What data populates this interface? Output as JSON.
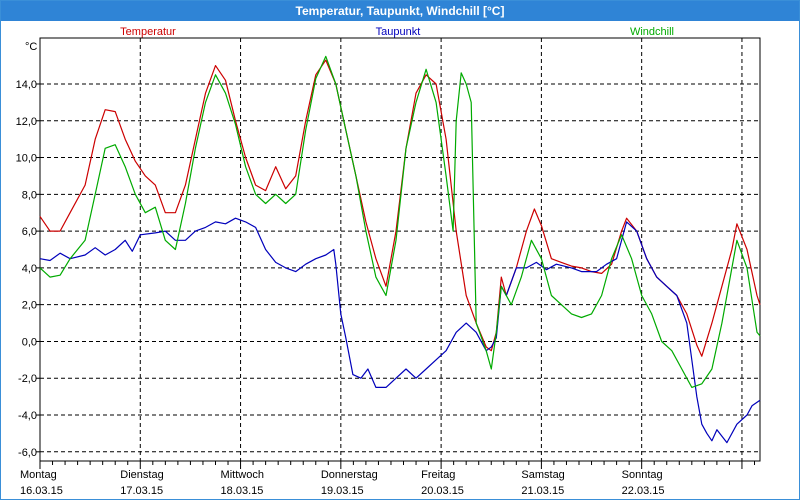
{
  "window": {
    "title": "Temperatur, Taupunkt, Windchill [°C]"
  },
  "chart_data": {
    "type": "line",
    "title": "Temperatur, Taupunkt, Windchill [°C]",
    "ylabel": "°C",
    "ylim": [
      -6.5,
      16.5
    ],
    "yticks": [
      14.0,
      12.0,
      10.0,
      8.0,
      6.0,
      4.0,
      2.0,
      0.0,
      -2.0,
      -4.0,
      -6.0
    ],
    "ytick_labels": [
      "14,0",
      "12,0",
      "10,0",
      "8,0",
      "6,0",
      "4,0",
      "2,0",
      "0,0",
      "-2,0",
      "-4,0",
      "-6,0"
    ],
    "xlim": [
      0,
      7.18
    ],
    "grid": true,
    "legend_position": "top",
    "day_labels": [
      {
        "day": "Montag",
        "date": "16.03.15"
      },
      {
        "day": "Dienstag",
        "date": "17.03.15"
      },
      {
        "day": "Mittwoch",
        "date": "18.03.15"
      },
      {
        "day": "Donnerstag",
        "date": "19.03.15"
      },
      {
        "day": "Freitag",
        "date": "20.03.15"
      },
      {
        "day": "Samstag",
        "date": "21.03.15"
      },
      {
        "day": "Sonntag",
        "date": "22.03.15"
      }
    ],
    "series": [
      {
        "name": "Temperatur",
        "color": "#cc0000",
        "points": [
          [
            0,
            6.8
          ],
          [
            0.1,
            6.0
          ],
          [
            0.2,
            6.0
          ],
          [
            0.3,
            7.0
          ],
          [
            0.45,
            8.5
          ],
          [
            0.55,
            11.0
          ],
          [
            0.65,
            12.6
          ],
          [
            0.75,
            12.5
          ],
          [
            0.85,
            11.0
          ],
          [
            0.95,
            9.8
          ],
          [
            1.05,
            9.0
          ],
          [
            1.15,
            8.5
          ],
          [
            1.25,
            7.0
          ],
          [
            1.35,
            7.0
          ],
          [
            1.45,
            8.5
          ],
          [
            1.55,
            11.0
          ],
          [
            1.65,
            13.5
          ],
          [
            1.75,
            15.0
          ],
          [
            1.85,
            14.2
          ],
          [
            1.95,
            12.0
          ],
          [
            2.05,
            10.0
          ],
          [
            2.15,
            8.5
          ],
          [
            2.25,
            8.2
          ],
          [
            2.35,
            9.5
          ],
          [
            2.45,
            8.3
          ],
          [
            2.55,
            9.0
          ],
          [
            2.65,
            12.0
          ],
          [
            2.75,
            14.5
          ],
          [
            2.85,
            15.3
          ],
          [
            2.95,
            14.0
          ],
          [
            3.05,
            11.5
          ],
          [
            3.15,
            9.0
          ],
          [
            3.25,
            6.5
          ],
          [
            3.35,
            4.5
          ],
          [
            3.45,
            3.0
          ],
          [
            3.55,
            6.0
          ],
          [
            3.65,
            10.5
          ],
          [
            3.75,
            13.5
          ],
          [
            3.85,
            14.5
          ],
          [
            3.95,
            14.0
          ],
          [
            4.05,
            11.0
          ],
          [
            4.15,
            6.0
          ],
          [
            4.25,
            2.5
          ],
          [
            4.35,
            1.0
          ],
          [
            4.45,
            -0.3
          ],
          [
            4.5,
            -0.5
          ],
          [
            4.55,
            0.5
          ],
          [
            4.6,
            3.5
          ],
          [
            4.65,
            2.5
          ],
          [
            4.75,
            4.0
          ],
          [
            4.85,
            6.0
          ],
          [
            4.93,
            7.2
          ],
          [
            5.0,
            6.3
          ],
          [
            5.1,
            4.5
          ],
          [
            5.2,
            4.3
          ],
          [
            5.3,
            4.1
          ],
          [
            5.4,
            4.0
          ],
          [
            5.5,
            3.8
          ],
          [
            5.6,
            3.7
          ],
          [
            5.7,
            4.2
          ],
          [
            5.8,
            6.0
          ],
          [
            5.85,
            6.7
          ],
          [
            5.95,
            6.0
          ],
          [
            6.05,
            4.5
          ],
          [
            6.15,
            3.5
          ],
          [
            6.25,
            3.0
          ],
          [
            6.35,
            2.5
          ],
          [
            6.45,
            1.5
          ],
          [
            6.55,
            -0.2
          ],
          [
            6.6,
            -0.8
          ],
          [
            6.7,
            1.0
          ],
          [
            6.8,
            3.0
          ],
          [
            6.9,
            5.0
          ],
          [
            6.95,
            6.4
          ],
          [
            7.05,
            5.0
          ],
          [
            7.15,
            2.5
          ],
          [
            7.18,
            2.0
          ]
        ]
      },
      {
        "name": "Taupunkt",
        "color": "#0000bb",
        "points": [
          [
            0,
            4.5
          ],
          [
            0.1,
            4.4
          ],
          [
            0.2,
            4.8
          ],
          [
            0.3,
            4.5
          ],
          [
            0.45,
            4.7
          ],
          [
            0.55,
            5.1
          ],
          [
            0.65,
            4.7
          ],
          [
            0.75,
            5.0
          ],
          [
            0.85,
            5.5
          ],
          [
            0.92,
            4.9
          ],
          [
            1.0,
            5.8
          ],
          [
            1.15,
            5.9
          ],
          [
            1.25,
            6.0
          ],
          [
            1.35,
            5.5
          ],
          [
            1.45,
            5.5
          ],
          [
            1.55,
            6.0
          ],
          [
            1.65,
            6.2
          ],
          [
            1.75,
            6.5
          ],
          [
            1.85,
            6.4
          ],
          [
            1.95,
            6.7
          ],
          [
            2.05,
            6.5
          ],
          [
            2.15,
            6.2
          ],
          [
            2.25,
            5.0
          ],
          [
            2.35,
            4.3
          ],
          [
            2.45,
            4.0
          ],
          [
            2.55,
            3.8
          ],
          [
            2.65,
            4.2
          ],
          [
            2.75,
            4.5
          ],
          [
            2.85,
            4.7
          ],
          [
            2.93,
            5.0
          ],
          [
            2.95,
            4.2
          ],
          [
            3.0,
            1.5
          ],
          [
            3.05,
            0.2
          ],
          [
            3.12,
            -1.8
          ],
          [
            3.2,
            -2.0
          ],
          [
            3.27,
            -1.5
          ],
          [
            3.35,
            -2.5
          ],
          [
            3.45,
            -2.5
          ],
          [
            3.55,
            -2.0
          ],
          [
            3.65,
            -1.5
          ],
          [
            3.75,
            -2.0
          ],
          [
            3.85,
            -1.5
          ],
          [
            3.95,
            -1.0
          ],
          [
            4.05,
            -0.5
          ],
          [
            4.15,
            0.5
          ],
          [
            4.25,
            1.0
          ],
          [
            4.35,
            0.5
          ],
          [
            4.45,
            -0.5
          ],
          [
            4.5,
            -0.3
          ],
          [
            4.55,
            0.2
          ],
          [
            4.6,
            3.0
          ],
          [
            4.65,
            2.5
          ],
          [
            4.75,
            4.0
          ],
          [
            4.85,
            4.0
          ],
          [
            4.95,
            4.3
          ],
          [
            5.05,
            3.9
          ],
          [
            5.15,
            4.2
          ],
          [
            5.3,
            4.0
          ],
          [
            5.4,
            3.8
          ],
          [
            5.55,
            3.8
          ],
          [
            5.65,
            4.2
          ],
          [
            5.75,
            4.5
          ],
          [
            5.85,
            6.5
          ],
          [
            5.95,
            6.0
          ],
          [
            6.05,
            4.5
          ],
          [
            6.15,
            3.5
          ],
          [
            6.25,
            3.0
          ],
          [
            6.35,
            2.5
          ],
          [
            6.45,
            1.0
          ],
          [
            6.5,
            -1.0
          ],
          [
            6.55,
            -3.0
          ],
          [
            6.6,
            -4.5
          ],
          [
            6.65,
            -5.0
          ],
          [
            6.7,
            -5.4
          ],
          [
            6.75,
            -4.8
          ],
          [
            6.85,
            -5.5
          ],
          [
            6.95,
            -4.5
          ],
          [
            7.05,
            -4.0
          ],
          [
            7.1,
            -3.5
          ],
          [
            7.18,
            -3.2
          ]
        ]
      },
      {
        "name": "Windchill",
        "color": "#00aa00",
        "points": [
          [
            0,
            4.0
          ],
          [
            0.1,
            3.5
          ],
          [
            0.2,
            3.6
          ],
          [
            0.3,
            4.5
          ],
          [
            0.45,
            5.5
          ],
          [
            0.55,
            8.0
          ],
          [
            0.65,
            10.5
          ],
          [
            0.75,
            10.7
          ],
          [
            0.85,
            9.5
          ],
          [
            0.95,
            8.0
          ],
          [
            1.05,
            7.0
          ],
          [
            1.15,
            7.3
          ],
          [
            1.25,
            5.5
          ],
          [
            1.35,
            5.0
          ],
          [
            1.45,
            7.5
          ],
          [
            1.55,
            10.5
          ],
          [
            1.65,
            13.0
          ],
          [
            1.75,
            14.5
          ],
          [
            1.85,
            13.5
          ],
          [
            1.95,
            11.8
          ],
          [
            2.05,
            9.5
          ],
          [
            2.15,
            8.0
          ],
          [
            2.25,
            7.5
          ],
          [
            2.35,
            8.0
          ],
          [
            2.45,
            7.5
          ],
          [
            2.55,
            8.0
          ],
          [
            2.65,
            11.5
          ],
          [
            2.75,
            14.3
          ],
          [
            2.85,
            15.5
          ],
          [
            2.95,
            14.0
          ],
          [
            3.05,
            11.5
          ],
          [
            3.15,
            9.0
          ],
          [
            3.25,
            6.0
          ],
          [
            3.35,
            3.5
          ],
          [
            3.45,
            2.5
          ],
          [
            3.55,
            5.5
          ],
          [
            3.65,
            10.5
          ],
          [
            3.75,
            13.0
          ],
          [
            3.85,
            14.8
          ],
          [
            3.95,
            13.0
          ],
          [
            4.05,
            9.0
          ],
          [
            4.12,
            6.0
          ],
          [
            4.15,
            12.0
          ],
          [
            4.2,
            14.6
          ],
          [
            4.25,
            14.0
          ],
          [
            4.3,
            13.0
          ],
          [
            4.35,
            1.0
          ],
          [
            4.45,
            -0.5
          ],
          [
            4.5,
            -1.5
          ],
          [
            4.55,
            0.5
          ],
          [
            4.6,
            3.0
          ],
          [
            4.7,
            2.0
          ],
          [
            4.8,
            3.5
          ],
          [
            4.9,
            5.5
          ],
          [
            5.0,
            4.5
          ],
          [
            5.1,
            2.5
          ],
          [
            5.2,
            2.0
          ],
          [
            5.3,
            1.5
          ],
          [
            5.4,
            1.3
          ],
          [
            5.5,
            1.5
          ],
          [
            5.6,
            2.5
          ],
          [
            5.7,
            4.5
          ],
          [
            5.8,
            5.8
          ],
          [
            5.9,
            4.5
          ],
          [
            6.0,
            2.5
          ],
          [
            6.1,
            1.5
          ],
          [
            6.2,
            0.0
          ],
          [
            6.3,
            -0.5
          ],
          [
            6.4,
            -1.5
          ],
          [
            6.5,
            -2.5
          ],
          [
            6.6,
            -2.3
          ],
          [
            6.7,
            -1.5
          ],
          [
            6.8,
            1.0
          ],
          [
            6.9,
            4.0
          ],
          [
            6.95,
            5.5
          ],
          [
            7.05,
            4.0
          ],
          [
            7.15,
            0.5
          ],
          [
            7.18,
            0.3
          ]
        ]
      }
    ]
  }
}
